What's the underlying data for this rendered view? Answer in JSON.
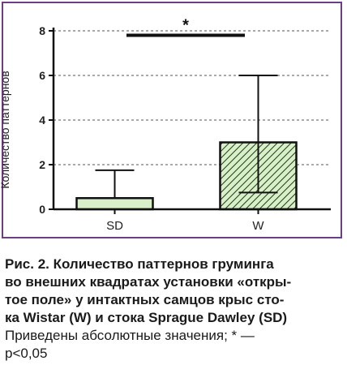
{
  "chart_data": {
    "type": "bar",
    "categories": [
      "SD",
      "W"
    ],
    "values": [
      0.5,
      3.0
    ],
    "error_low": [
      0.5,
      0.75
    ],
    "error_high": [
      1.75,
      6.0
    ],
    "ylabel": "Количество паттернов",
    "ylim": [
      0,
      8
    ],
    "yticks": [
      0,
      2,
      4,
      6,
      8
    ],
    "grid": true,
    "significance": {
      "label": "*",
      "y": 7.8
    },
    "bar_fill": "#d9efc9",
    "hatch_fill": "#d9efc9",
    "hatch_color": "#1f3d14"
  },
  "caption": {
    "title_line1": "Рис. 2. Количество паттернов груминга",
    "title_line2": "во внешних квадратах установки «откры-",
    "title_line3": "тое поле» у интактных самцов крыс сто-",
    "title_line4": "ка Wistar (W) и стока Sprague Dawley (SD)",
    "note_line1": "Приведены абсолютные значения; * —",
    "note_line2": "p<0,05"
  }
}
